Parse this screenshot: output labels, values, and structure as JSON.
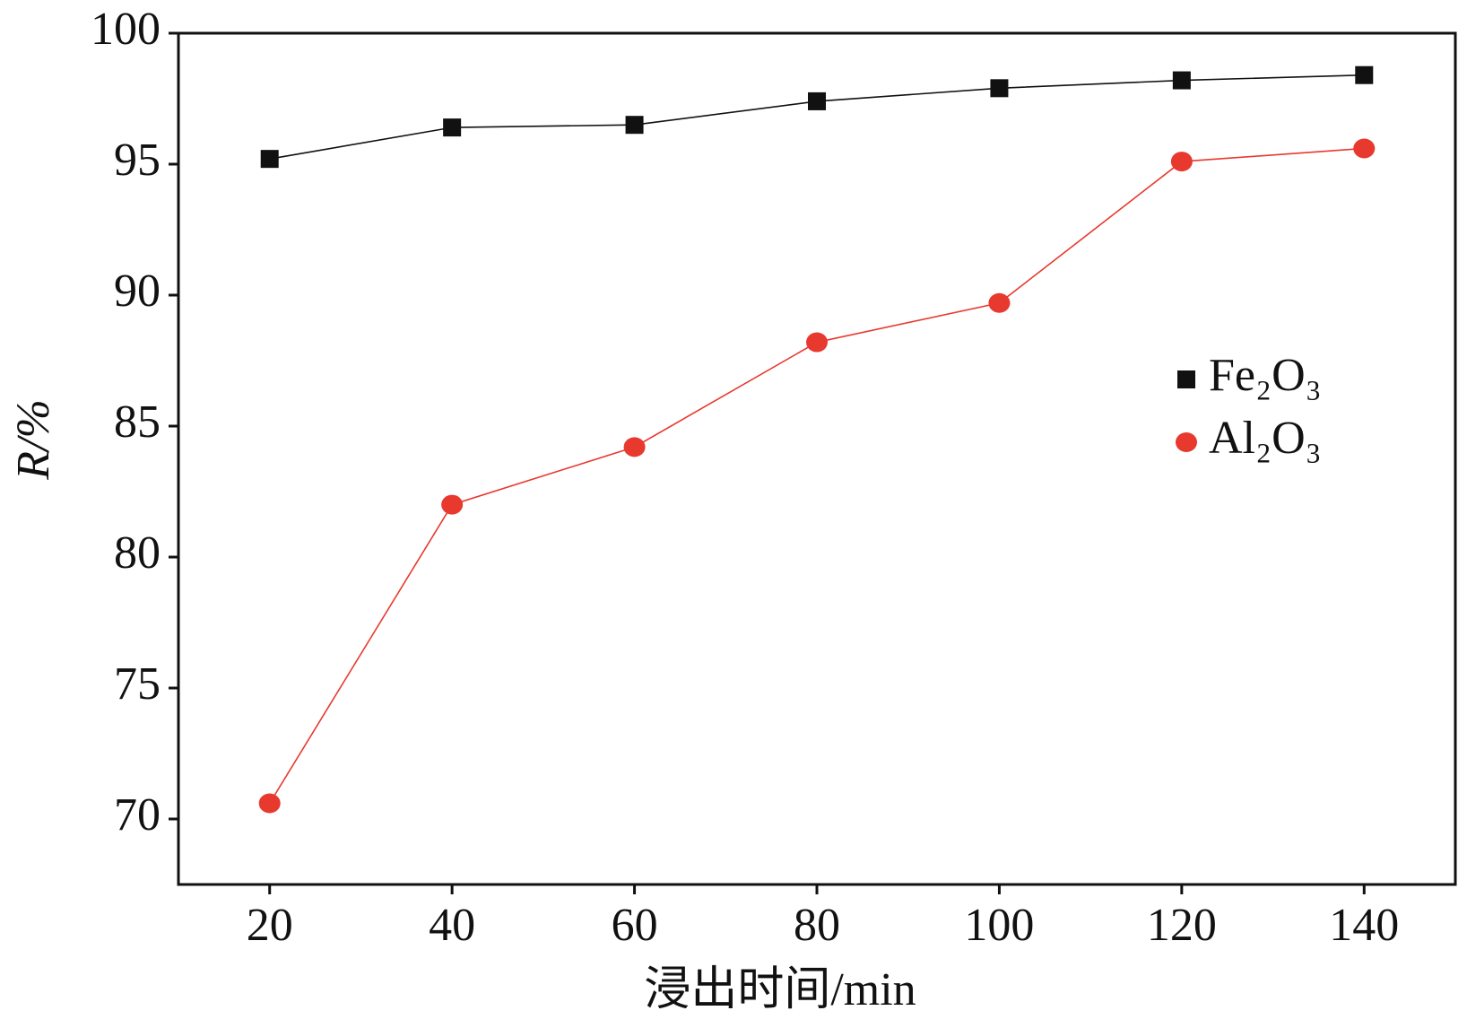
{
  "chart_data": {
    "type": "line",
    "x_label": "浸出时间/min",
    "y_label": "R/%",
    "x": [
      20,
      40,
      60,
      80,
      100,
      120,
      140
    ],
    "series": [
      {
        "name": "Fe₂O₃",
        "color": "#111111",
        "marker": "square",
        "values": [
          95.2,
          96.4,
          96.5,
          97.4,
          97.9,
          98.2,
          98.4
        ]
      },
      {
        "name": "Al₂O₃",
        "color": "#e8392f",
        "marker": "circle",
        "values": [
          70.6,
          82.0,
          84.2,
          88.2,
          89.7,
          95.1,
          95.6
        ]
      }
    ],
    "xlim": [
      10,
      150
    ],
    "ylim": [
      67.5,
      100
    ],
    "xticks": [
      20,
      40,
      60,
      80,
      100,
      120,
      140
    ],
    "yticks": [
      70,
      75,
      80,
      85,
      90,
      95,
      100
    ],
    "grid": false,
    "legend": "right"
  }
}
